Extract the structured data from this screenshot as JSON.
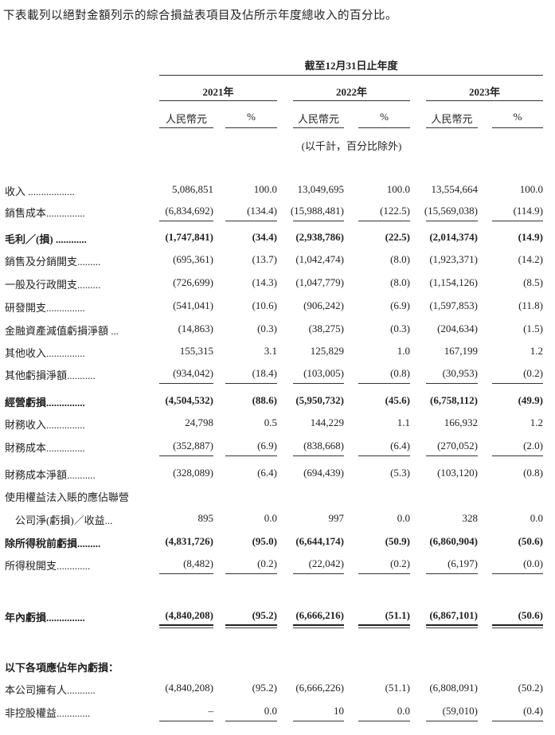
{
  "intro": "下表載列以絕對金額列示的綜合損益表項目及佔所示年度總收入的百分比。",
  "header": {
    "period": "截至12月31日止年度",
    "years": [
      "2021年",
      "2022年",
      "2023年"
    ],
    "currency": "人民幣元",
    "percent": "%",
    "unit_note": "(以千計，百分比除外)"
  },
  "rows": [
    {
      "label": "收入 ..................",
      "bold": false,
      "values": [
        "5,086,851",
        "100.0",
        "13,049,695",
        "100.0",
        "13,554,664",
        "100.0"
      ]
    },
    {
      "label": "銷售成本...............",
      "bold": false,
      "values": [
        "(6,834,692)",
        "(134.4)",
        "(15,988,481)",
        "(122.5)",
        "(15,569,038)",
        "(114.9)"
      ],
      "rule": "single"
    },
    {
      "label": "毛利／(損) ............",
      "bold": true,
      "values": [
        "(1,747,841)",
        "(34.4)",
        "(2,938,786)",
        "(22.5)",
        "(2,014,374)",
        "(14.9)"
      ]
    },
    {
      "label": "銷售及分銷開支.........",
      "bold": false,
      "values": [
        "(695,361)",
        "(13.7)",
        "(1,042,474)",
        "(8.0)",
        "(1,923,371)",
        "(14.2)"
      ]
    },
    {
      "label": "一般及行政開支.........",
      "bold": false,
      "values": [
        "(726,699)",
        "(14.3)",
        "(1,047,779)",
        "(8.0)",
        "(1,154,126)",
        "(8.5)"
      ]
    },
    {
      "label": "研發開支...............",
      "bold": false,
      "values": [
        "(541,041)",
        "(10.6)",
        "(906,242)",
        "(6.9)",
        "(1,597,853)",
        "(11.8)"
      ]
    },
    {
      "label": "金融資產減值虧損淨額 ...",
      "bold": false,
      "values": [
        "(14,863)",
        "(0.3)",
        "(38,275)",
        "(0.3)",
        "(204,634)",
        "(1.5)"
      ]
    },
    {
      "label": "其他收入...............",
      "bold": false,
      "values": [
        "155,315",
        "3.1",
        "125,829",
        "1.0",
        "167,199",
        "1.2"
      ]
    },
    {
      "label": "其他虧損淨額...........",
      "bold": false,
      "values": [
        "(934,042)",
        "(18.4)",
        "(103,005)",
        "(0.8)",
        "(30,953)",
        "(0.2)"
      ],
      "rule": "single"
    },
    {
      "label": "經營虧損...............",
      "bold": true,
      "values": [
        "(4,504,532)",
        "(88.6)",
        "(5,950,732)",
        "(45.6)",
        "(6,758,112)",
        "(49.9)"
      ]
    },
    {
      "label": "財務收入...............",
      "bold": false,
      "values": [
        "24,798",
        "0.5",
        "144,229",
        "1.1",
        "166,932",
        "1.2"
      ]
    },
    {
      "label": "財務成本...............",
      "bold": false,
      "values": [
        "(352,887)",
        "(6.9)",
        "(838,668)",
        "(6.4)",
        "(270,052)",
        "(2.0)"
      ],
      "rule": "single"
    },
    {
      "label": "財務成本淨額...........",
      "bold": false,
      "values": [
        "(328,089)",
        "(6.4)",
        "(694,439)",
        "(5.3)",
        "(103,120)",
        "(0.8)"
      ]
    },
    {
      "label": "使用權益法入賬的應佔聯營",
      "bold": false,
      "values": []
    },
    {
      "label": "　公司淨(虧損)／收益...",
      "bold": false,
      "values": [
        "895",
        "0.0",
        "997",
        "0.0",
        "328",
        "0.0"
      ]
    },
    {
      "label": "除所得稅前虧損.........",
      "bold": true,
      "values": [
        "(4,831,726)",
        "(95.0)",
        "(6,644,174)",
        "(50.9)",
        "(6,860,904)",
        "(50.6)"
      ]
    },
    {
      "label": "所得稅開支.............",
      "bold": false,
      "values": [
        "(8,482)",
        "(0.2)",
        "(22,042)",
        "(0.2)",
        "(6,197)",
        "(0.0)"
      ],
      "rule": "single"
    },
    {
      "label": "年內虧損...............",
      "bold": true,
      "values": [
        "(4,840,208)",
        "(95.2)",
        "(6,666,216)",
        "(51.1)",
        "(6,867,101)",
        "(50.6)"
      ],
      "rule": "double"
    },
    {
      "label": "以下各項應佔年內虧損：",
      "bold": true,
      "values": []
    },
    {
      "label": "本公司擁有人...........",
      "bold": false,
      "values": [
        "(4,840,208)",
        "(95.2)",
        "(6,666,226)",
        "(51.1)",
        "(6,808,091)",
        "(50.2)"
      ]
    },
    {
      "label": "非控股權益.............",
      "bold": false,
      "values": [
        "–",
        "0.0",
        "10",
        "0.0",
        "(59,010)",
        "(0.4)"
      ],
      "rule": "single"
    }
  ]
}
